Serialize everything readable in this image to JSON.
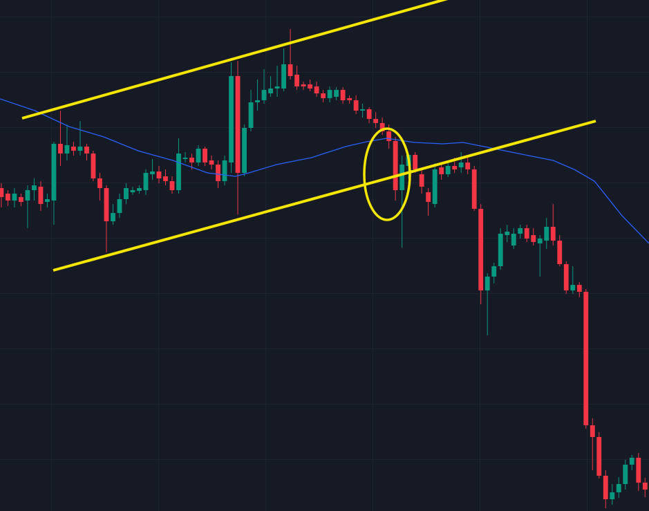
{
  "chart_data": {
    "type": "candlestick",
    "up_color": "#089981",
    "down_color": "#f23645",
    "xlim": [
      -0.2,
      98.6
    ],
    "ylim": [
      0,
      739
    ],
    "open": [
      467,
      459,
      449,
      454,
      449,
      464,
      469,
      447,
      449,
      531,
      517,
      527,
      521,
      527,
      517,
      481,
      467,
      419,
      431,
      451,
      461,
      463,
      464,
      487,
      491,
      484,
      477,
      464,
      509,
      511,
      504,
      524,
      507,
      501,
      477,
      504,
      629,
      489,
      554,
      591,
      594,
      604,
      611,
      611,
      646,
      631,
      617,
      617,
      614,
      604,
      597,
      599,
      609,
      597,
      594,
      579,
      581,
      567,
      561,
      549,
      535,
      464,
      499,
      515,
      487,
      461,
      444,
      497,
      487,
      499,
      497,
      504,
      494,
      437,
      319,
      339,
      354,
      399,
      384,
      401,
      409,
      399,
      387,
      391,
      411,
      391,
      357,
      319,
      327,
      317,
      124,
      107,
      51,
      17,
      27,
      39,
      67,
      77,
      41
    ],
    "high": [
      474,
      464,
      467,
      459,
      471,
      481,
      477,
      459,
      534,
      579,
      559,
      534,
      564,
      531,
      521,
      489,
      471,
      444,
      459,
      474,
      469,
      471,
      494,
      509,
      499,
      494,
      484,
      539,
      519,
      517,
      529,
      527,
      514,
      507,
      514,
      649,
      651,
      559,
      609,
      624,
      639,
      629,
      644,
      669,
      697,
      644,
      621,
      624,
      621,
      609,
      614,
      613,
      613,
      601,
      601,
      589,
      584,
      577,
      569,
      559,
      541,
      514,
      517,
      519,
      494,
      467,
      503,
      504,
      507,
      511,
      519,
      511,
      499,
      444,
      344,
      359,
      409,
      414,
      409,
      414,
      414,
      409,
      399,
      424,
      444,
      399,
      361,
      354,
      331,
      321,
      134,
      114,
      59,
      39,
      49,
      74,
      81,
      84,
      48
    ],
    "low": [
      439,
      441,
      439,
      441,
      409,
      449,
      434,
      439,
      414,
      499,
      507,
      514,
      514,
      507,
      477,
      449,
      374,
      414,
      424,
      444,
      457,
      459,
      457,
      479,
      474,
      471,
      459,
      459,
      504,
      494,
      499,
      499,
      494,
      467,
      471,
      489,
      429,
      484,
      549,
      579,
      589,
      599,
      599,
      607,
      624,
      609,
      609,
      607,
      599,
      591,
      591,
      594,
      589,
      589,
      574,
      569,
      561,
      554,
      544,
      524,
      449,
      381,
      481,
      489,
      459,
      427,
      439,
      479,
      483,
      489,
      489,
      487,
      434,
      299,
      254,
      329,
      349,
      389,
      379,
      394,
      389,
      384,
      339,
      379,
      384,
      354,
      314,
      314,
      309,
      119,
      59,
      47,
      4,
      9,
      19,
      31,
      59,
      29,
      20
    ],
    "close": [
      454,
      449,
      459,
      447,
      464,
      471,
      444,
      451,
      531,
      517,
      529,
      521,
      527,
      517,
      481,
      467,
      419,
      431,
      451,
      467,
      464,
      467,
      489,
      491,
      481,
      477,
      464,
      517,
      511,
      504,
      524,
      504,
      501,
      477,
      507,
      629,
      489,
      554,
      591,
      594,
      609,
      611,
      614,
      646,
      629,
      614,
      614,
      611,
      604,
      597,
      609,
      609,
      594,
      594,
      579,
      581,
      567,
      561,
      549,
      535,
      464,
      501,
      515,
      494,
      469,
      447,
      494,
      487,
      499,
      494,
      504,
      494,
      437,
      319,
      339,
      354,
      401,
      404,
      401,
      409,
      394,
      389,
      394,
      411,
      391,
      357,
      319,
      327,
      317,
      124,
      107,
      51,
      17,
      27,
      39,
      67,
      77,
      41,
      31
    ],
    "ma": {
      "color": "#2962ff",
      "x": [
        -0.2,
        5.1,
        10.3,
        15.6,
        20.8,
        26.1,
        31.4,
        35.6,
        37.7,
        41.9,
        47.2,
        52.4,
        55.6,
        58.7,
        62.9,
        67.2,
        70.3,
        73.5,
        78.7,
        84,
        87.2,
        90.3,
        94.5,
        98.6
      ],
      "values": [
        596,
        579,
        556,
        541,
        521,
        507,
        489,
        484,
        489,
        501,
        511,
        527,
        534,
        539,
        533,
        531,
        533,
        527,
        517,
        507,
        494,
        477,
        427,
        387
      ]
    }
  }
}
